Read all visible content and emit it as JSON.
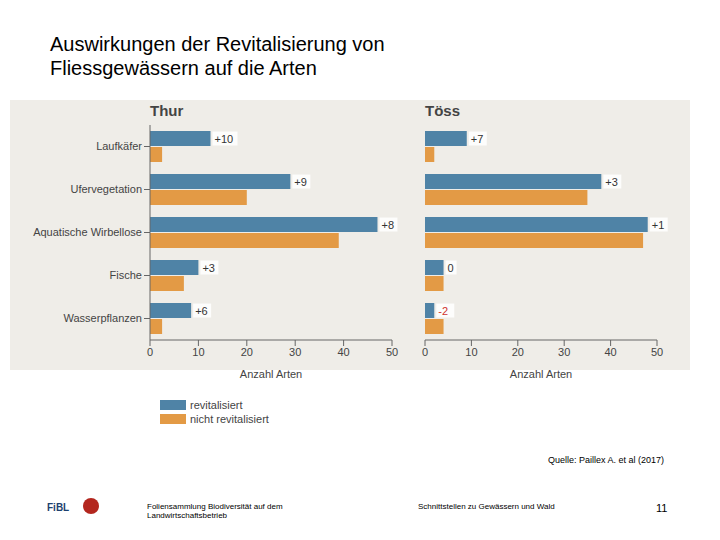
{
  "title": "Auswirkungen der Revitalisierung von Fliessgewässern auf die Arten",
  "chart_data": [
    {
      "type": "bar",
      "title": "Thur",
      "orientation": "horizontal",
      "categories": [
        "Laufkäfer",
        "Ufervegetation",
        "Aquatische Wirbellose",
        "Fische",
        "Wasserpflanzen"
      ],
      "series": [
        {
          "name": "revitalisiert",
          "color": "#4f83a6",
          "values": [
            12.5,
            29,
            47,
            10,
            8.5
          ]
        },
        {
          "name": "nicht revitalisiert",
          "color": "#e39a45",
          "values": [
            2.5,
            20,
            39,
            7,
            2.5
          ]
        }
      ],
      "annotations": [
        "+10",
        "+9",
        "+8",
        "+3",
        "+6"
      ],
      "xlim": [
        0,
        50
      ],
      "xticks": [
        0,
        10,
        20,
        30,
        40,
        50
      ],
      "xlabel": "Anzahl Arten",
      "legend": "bottom left"
    },
    {
      "type": "bar",
      "title": "Töss",
      "orientation": "horizontal",
      "categories": [
        "Laufkäfer",
        "Ufervegetation",
        "Aquatische Wirbellose",
        "Fische",
        "Wasserpflanzen"
      ],
      "series": [
        {
          "name": "revitalisiert",
          "color": "#4f83a6",
          "values": [
            9,
            38,
            48,
            4,
            2
          ]
        },
        {
          "name": "nicht revitalisiert",
          "color": "#e39a45",
          "values": [
            2,
            35,
            47,
            4,
            4
          ]
        }
      ],
      "annotations": [
        "+7",
        "+3",
        "+1",
        "0",
        "-2"
      ],
      "xlim": [
        0,
        50
      ],
      "xticks": [
        0,
        10,
        20,
        30,
        40,
        50
      ],
      "xlabel": "Anzahl Arten",
      "tick_labels": "x"
    }
  ],
  "source": "Quelle: Paillex A. et al (2017)",
  "logo": "FiBL",
  "footer": {
    "left": "Foliensammlung Biodiversität auf dem Landwirtschaftsbetrieb",
    "center": "Schnittstellen zu Gewässern und Wald",
    "page": 11
  }
}
